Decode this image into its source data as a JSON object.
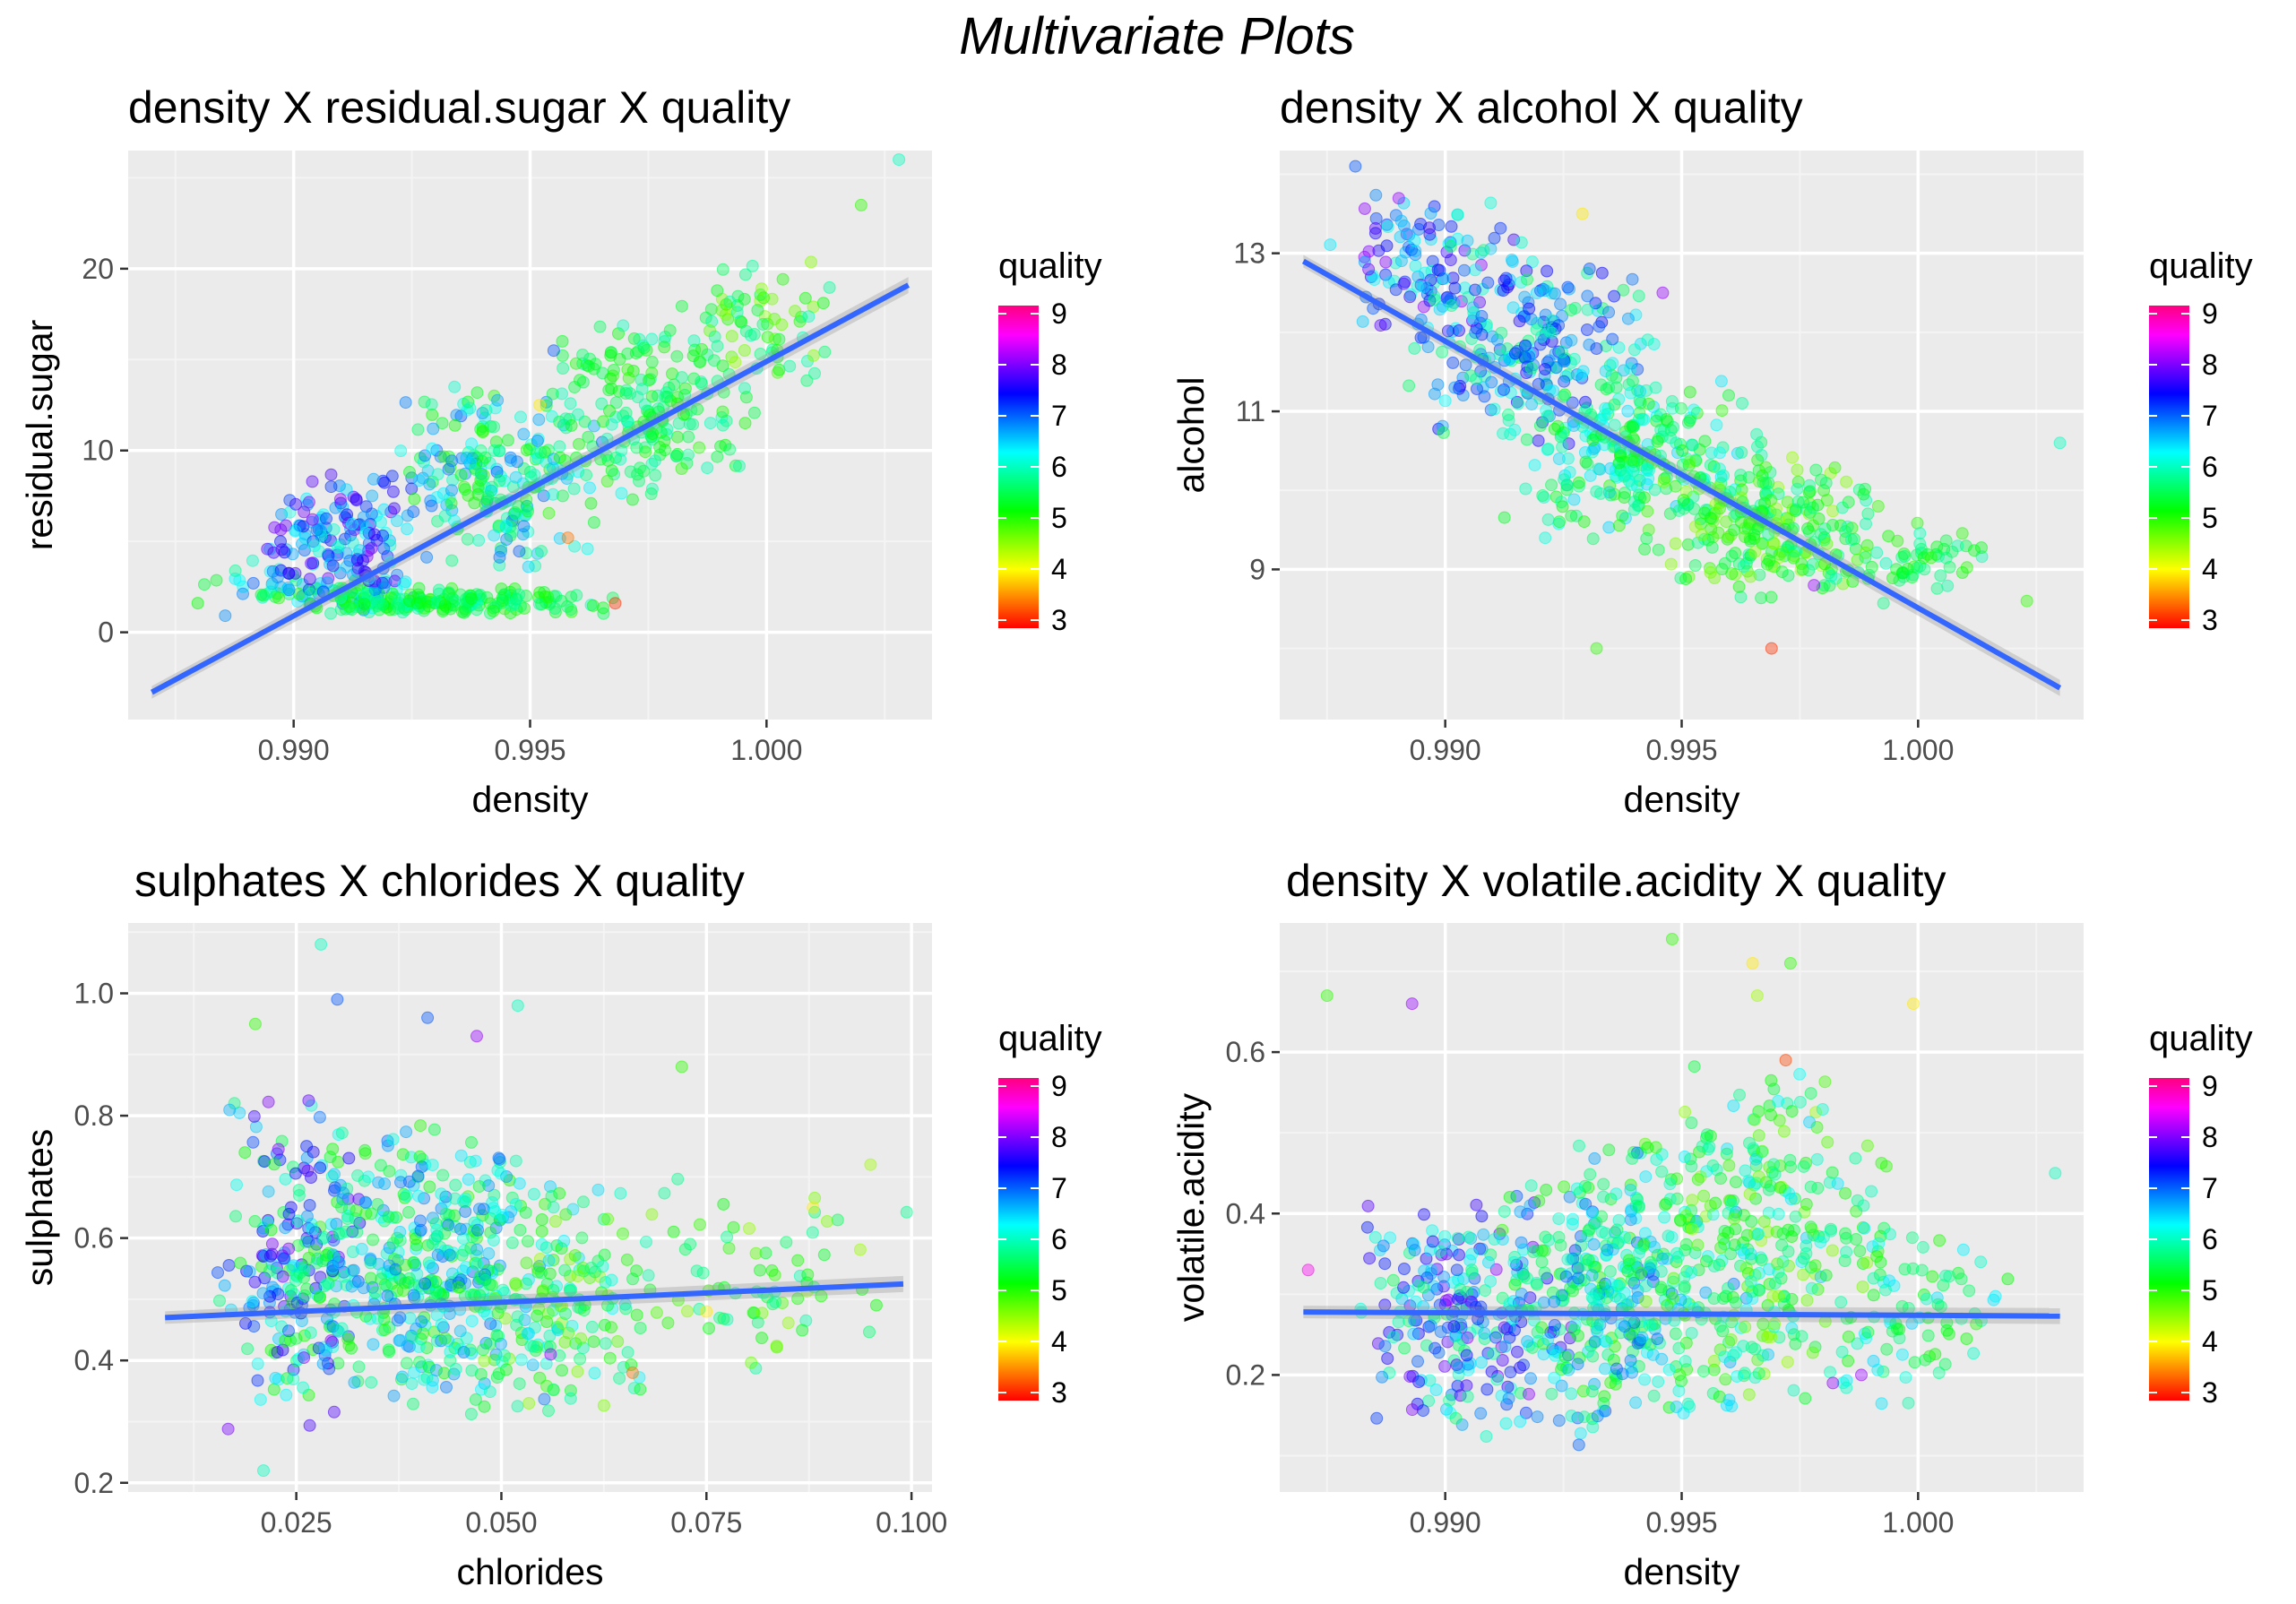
{
  "figure": {
    "title": "Multivariate Plots"
  },
  "colors": {
    "panel_bg": "#ebebeb",
    "grid_major": "#ffffff",
    "grid_minor": "#f4f4f4",
    "trend": "#3366ff",
    "ci_band": "#999999",
    "tick_text": "#4d4d4d",
    "rainbow_scale": [
      "#ff0000",
      "#ff8000",
      "#ffff00",
      "#80ff00",
      "#00ff00",
      "#00ff80",
      "#00ffff",
      "#0080ff",
      "#0000ff",
      "#8000ff",
      "#ff00ff",
      "#ff0080"
    ]
  },
  "chart_data": [
    {
      "type": "scatter",
      "title": "density X residual.sugar X quality",
      "xlabel": "density",
      "ylabel": "residual.sugar",
      "xlim": [
        0.9865,
        1.0035
      ],
      "ylim": [
        -4.8,
        26.5
      ],
      "xticks": [
        0.99,
        0.995,
        1.0
      ],
      "xtick_labels": [
        "0.990",
        "0.995",
        "1.000"
      ],
      "yticks": [
        0,
        10,
        20
      ],
      "ytick_labels": [
        "0",
        "10",
        "20"
      ],
      "color_by": "quality",
      "point_alpha": 0.4,
      "trend_line": {
        "x": [
          0.987,
          1.003
        ],
        "y": [
          -3.3,
          19.1
        ]
      },
      "legend": {
        "title": "quality",
        "min": 3,
        "max": 9,
        "ticks": [
          "9",
          "8",
          "7",
          "6",
          "5",
          "4",
          "3"
        ],
        "position": "right"
      },
      "clusters": [
        {
          "x": [
            0.9875,
            0.994
          ],
          "y": [
            0.8,
            3.5
          ],
          "q": [
            5,
            7
          ],
          "n": 90
        },
        {
          "x": [
            0.989,
            0.993
          ],
          "y": [
            1,
            9
          ],
          "q": [
            6,
            8
          ],
          "n": 160
        },
        {
          "x": [
            0.99,
            0.997
          ],
          "y": [
            0.8,
            2.5
          ],
          "q": [
            5,
            6
          ],
          "n": 170
        },
        {
          "x": [
            0.992,
            0.997
          ],
          "y": [
            3,
            14
          ],
          "q": [
            5,
            7
          ],
          "n": 220
        },
        {
          "x": [
            0.995,
            1.0
          ],
          "y": [
            7,
            18
          ],
          "q": [
            5,
            6
          ],
          "n": 200
        },
        {
          "x": [
            0.998,
            1.0015
          ],
          "y": [
            13,
            21
          ],
          "q": [
            4.5,
            6
          ],
          "n": 70
        }
      ],
      "extra_points": [
        {
          "x": 1.0028,
          "y": 26.0,
          "q": 6
        },
        {
          "x": 1.002,
          "y": 23.5,
          "q": 5
        },
        {
          "x": 0.9968,
          "y": 1.6,
          "q": 3.2
        },
        {
          "x": 0.9958,
          "y": 5.2,
          "q": 3.5
        },
        {
          "x": 0.9955,
          "y": 15.5,
          "q": 7
        },
        {
          "x": 0.9952,
          "y": 12.5,
          "q": 4
        },
        {
          "x": 0.9904,
          "y": 6.2,
          "q": 8
        }
      ]
    },
    {
      "type": "scatter",
      "title": "density X alcohol X quality",
      "xlabel": "density",
      "ylabel": "alcohol",
      "xlim": [
        0.9865,
        1.0035
      ],
      "ylim": [
        7.1,
        14.3
      ],
      "xticks": [
        0.99,
        0.995,
        1.0
      ],
      "xtick_labels": [
        "0.990",
        "0.995",
        "1.000"
      ],
      "yticks": [
        9,
        11,
        13
      ],
      "ytick_labels": [
        "9",
        "11",
        "13"
      ],
      "color_by": "quality",
      "point_alpha": 0.4,
      "trend_line": {
        "x": [
          0.987,
          1.003
        ],
        "y": [
          12.9,
          7.5
        ]
      },
      "legend": {
        "title": "quality",
        "min": 3,
        "max": 9,
        "ticks": [
          "9",
          "8",
          "7",
          "6",
          "5",
          "4",
          "3"
        ],
        "position": "right"
      },
      "clusters": [
        {
          "x": [
            0.9875,
            0.9915
          ],
          "y": [
            11.8,
            13.9
          ],
          "q": [
            6,
            8
          ],
          "n": 110
        },
        {
          "x": [
            0.989,
            0.9945
          ],
          "y": [
            10.5,
            13.2
          ],
          "q": [
            5.5,
            7.5
          ],
          "n": 240
        },
        {
          "x": [
            0.991,
            0.997
          ],
          "y": [
            9.2,
            11.6
          ],
          "q": [
            5,
            6.5
          ],
          "n": 260
        },
        {
          "x": [
            0.994,
            0.9995
          ],
          "y": [
            8.6,
            10.5
          ],
          "q": [
            4.5,
            6
          ],
          "n": 240
        },
        {
          "x": [
            0.9975,
            1.0015
          ],
          "y": [
            8.5,
            9.8
          ],
          "q": [
            5,
            6
          ],
          "n": 70
        }
      ],
      "extra_points": [
        {
          "x": 1.003,
          "y": 10.6,
          "q": 6
        },
        {
          "x": 1.0023,
          "y": 8.6,
          "q": 5
        },
        {
          "x": 0.9969,
          "y": 8.0,
          "q": 3.2
        },
        {
          "x": 0.9932,
          "y": 8.0,
          "q": 5
        },
        {
          "x": 0.9881,
          "y": 14.1,
          "q": 7
        },
        {
          "x": 0.9929,
          "y": 13.5,
          "q": 4
        },
        {
          "x": 0.9946,
          "y": 12.5,
          "q": 8
        },
        {
          "x": 0.9978,
          "y": 8.8,
          "q": 8
        }
      ]
    },
    {
      "type": "scatter",
      "title": "sulphates X chlorides X quality",
      "xlabel": "chlorides",
      "ylabel": "sulphates",
      "xlim": [
        0.0045,
        0.1025
      ],
      "ylim": [
        0.185,
        1.115
      ],
      "xticks": [
        0.025,
        0.05,
        0.075,
        0.1
      ],
      "xtick_labels": [
        "0.025",
        "0.050",
        "0.075",
        "0.100"
      ],
      "yticks": [
        0.2,
        0.4,
        0.6,
        0.8,
        1.0
      ],
      "ytick_labels": [
        "0.2",
        "0.4",
        "0.6",
        "0.8",
        "1.0"
      ],
      "color_by": "quality",
      "point_alpha": 0.4,
      "trend_line": {
        "x": [
          0.009,
          0.099
        ],
        "y": [
          0.47,
          0.525
        ]
      },
      "legend": {
        "title": "quality",
        "min": 3,
        "max": 9,
        "ticks": [
          "9",
          "8",
          "7",
          "6",
          "5",
          "4",
          "3"
        ],
        "position": "right"
      },
      "clusters": [
        {
          "x": [
            0.015,
            0.035
          ],
          "y": [
            0.28,
            0.85
          ],
          "q": [
            5,
            8
          ],
          "n": 220
        },
        {
          "x": [
            0.025,
            0.058
          ],
          "y": [
            0.3,
            0.8
          ],
          "q": [
            5,
            7
          ],
          "n": 420
        },
        {
          "x": [
            0.045,
            0.07
          ],
          "y": [
            0.3,
            0.7
          ],
          "q": [
            4.5,
            6.5
          ],
          "n": 160
        },
        {
          "x": [
            0.065,
            0.1
          ],
          "y": [
            0.38,
            0.72
          ],
          "q": [
            4.5,
            6
          ],
          "n": 70
        }
      ],
      "extra_points": [
        {
          "x": 0.028,
          "y": 1.08,
          "q": 6
        },
        {
          "x": 0.021,
          "y": 0.22,
          "q": 6
        },
        {
          "x": 0.02,
          "y": 0.95,
          "q": 5
        },
        {
          "x": 0.03,
          "y": 0.99,
          "q": 7
        },
        {
          "x": 0.041,
          "y": 0.96,
          "q": 7
        },
        {
          "x": 0.052,
          "y": 0.98,
          "q": 6
        },
        {
          "x": 0.047,
          "y": 0.93,
          "q": 8
        },
        {
          "x": 0.072,
          "y": 0.88,
          "q": 5
        },
        {
          "x": 0.088,
          "y": 0.65,
          "q": 4
        },
        {
          "x": 0.095,
          "y": 0.72,
          "q": 4.5
        },
        {
          "x": 0.056,
          "y": 0.41,
          "q": 8
        },
        {
          "x": 0.075,
          "y": 0.48,
          "q": 4
        },
        {
          "x": 0.066,
          "y": 0.38,
          "q": 3.5
        }
      ]
    },
    {
      "type": "scatter",
      "title": "density X volatile.acidity X quality",
      "xlabel": "density",
      "ylabel": "volatile.acidity",
      "xlim": [
        0.9865,
        1.0035
      ],
      "ylim": [
        0.055,
        0.76
      ],
      "xticks": [
        0.99,
        0.995,
        1.0
      ],
      "xtick_labels": [
        "0.990",
        "0.995",
        "1.000"
      ],
      "yticks": [
        0.2,
        0.4,
        0.6
      ],
      "ytick_labels": [
        "0.2",
        "0.4",
        "0.6"
      ],
      "color_by": "quality",
      "point_alpha": 0.4,
      "trend_line": {
        "x": [
          0.987,
          1.003
        ],
        "y": [
          0.278,
          0.273
        ]
      },
      "legend": {
        "title": "quality",
        "min": 3,
        "max": 9,
        "ticks": [
          "9",
          "8",
          "7",
          "6",
          "5",
          "4",
          "3"
        ],
        "position": "right"
      },
      "clusters": [
        {
          "x": [
            0.988,
            0.993
          ],
          "y": [
            0.12,
            0.45
          ],
          "q": [
            5.5,
            8
          ],
          "n": 260
        },
        {
          "x": [
            0.991,
            0.9965
          ],
          "y": [
            0.1,
            0.5
          ],
          "q": [
            5,
            7
          ],
          "n": 360
        },
        {
          "x": [
            0.994,
            0.9995
          ],
          "y": [
            0.14,
            0.6
          ],
          "q": [
            4.5,
            6.5
          ],
          "n": 300
        },
        {
          "x": [
            0.998,
            1.002
          ],
          "y": [
            0.15,
            0.4
          ],
          "q": [
            5,
            6.5
          ],
          "n": 80
        }
      ],
      "extra_points": [
        {
          "x": 0.9948,
          "y": 0.74,
          "q": 5
        },
        {
          "x": 0.9965,
          "y": 0.71,
          "q": 4
        },
        {
          "x": 0.9973,
          "y": 0.71,
          "q": 5
        },
        {
          "x": 0.9875,
          "y": 0.67,
          "q": 5
        },
        {
          "x": 0.9893,
          "y": 0.66,
          "q": 8
        },
        {
          "x": 0.9999,
          "y": 0.66,
          "q": 4
        },
        {
          "x": 1.0029,
          "y": 0.45,
          "q": 6
        },
        {
          "x": 0.9871,
          "y": 0.33,
          "q": 8.5
        },
        {
          "x": 0.9972,
          "y": 0.59,
          "q": 3.3
        },
        {
          "x": 0.9966,
          "y": 0.67,
          "q": 4.5
        },
        {
          "x": 0.9982,
          "y": 0.19,
          "q": 8
        },
        {
          "x": 0.9988,
          "y": 0.2,
          "q": 8
        }
      ]
    }
  ]
}
